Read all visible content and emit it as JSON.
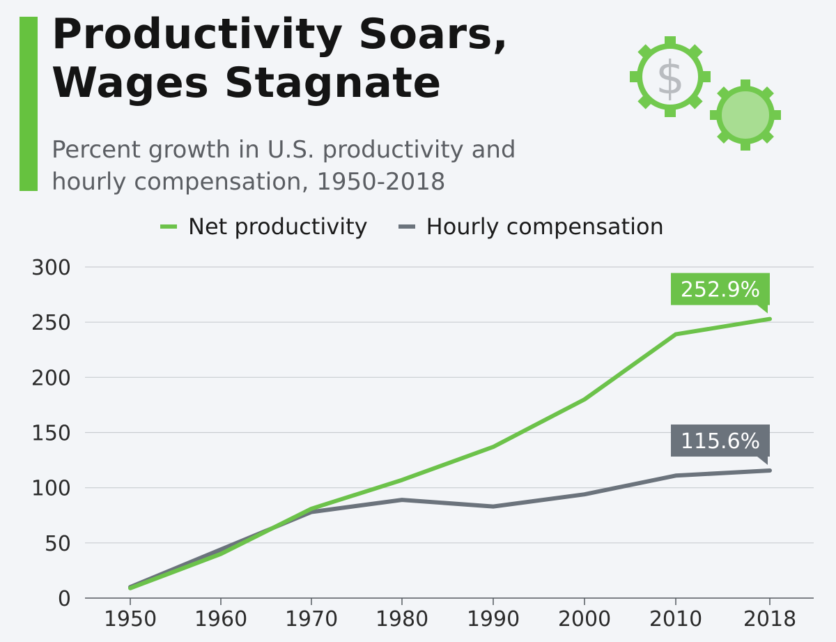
{
  "header": {
    "title_line1": "Productivity Soars,",
    "title_line2": "Wages Stagnate",
    "subtitle": "Percent growth in U.S. productivity and hourly compensation, 1950-2018"
  },
  "icons": {
    "gears": "gears-dollar-icon"
  },
  "colors": {
    "accent": "#66c23f",
    "productivity": "#6cc24a",
    "compensation": "#6b737c",
    "grid": "#c9ccd1"
  },
  "legend": [
    {
      "label": "Net productivity",
      "color": "#6cc24a"
    },
    {
      "label": "Hourly compensation",
      "color": "#6b737c"
    }
  ],
  "chart_data": {
    "type": "line",
    "title": "Productivity Soars, Wages Stagnate",
    "subtitle": "Percent growth in U.S. productivity and hourly compensation, 1950-2018",
    "categories": [
      "1950",
      "1960",
      "1970",
      "1980",
      "1990",
      "2000",
      "2010",
      "2018"
    ],
    "x": [
      1950,
      1960,
      1970,
      1980,
      1990,
      2000,
      2010,
      2018
    ],
    "series": [
      {
        "name": "Net productivity",
        "values": [
          9,
          40,
          81,
          107,
          137,
          180,
          239,
          252.9
        ],
        "label": "252.9%"
      },
      {
        "name": "Hourly compensation",
        "values": [
          10,
          44,
          78,
          89,
          83,
          94,
          111,
          115.6
        ],
        "label": "115.6%"
      }
    ],
    "ylim": [
      0,
      300
    ],
    "yticks": [
      "0",
      "50",
      "100",
      "150",
      "200",
      "250",
      "300"
    ],
    "xlabel": "",
    "ylabel": "",
    "grid": true,
    "legend_position": "top"
  }
}
